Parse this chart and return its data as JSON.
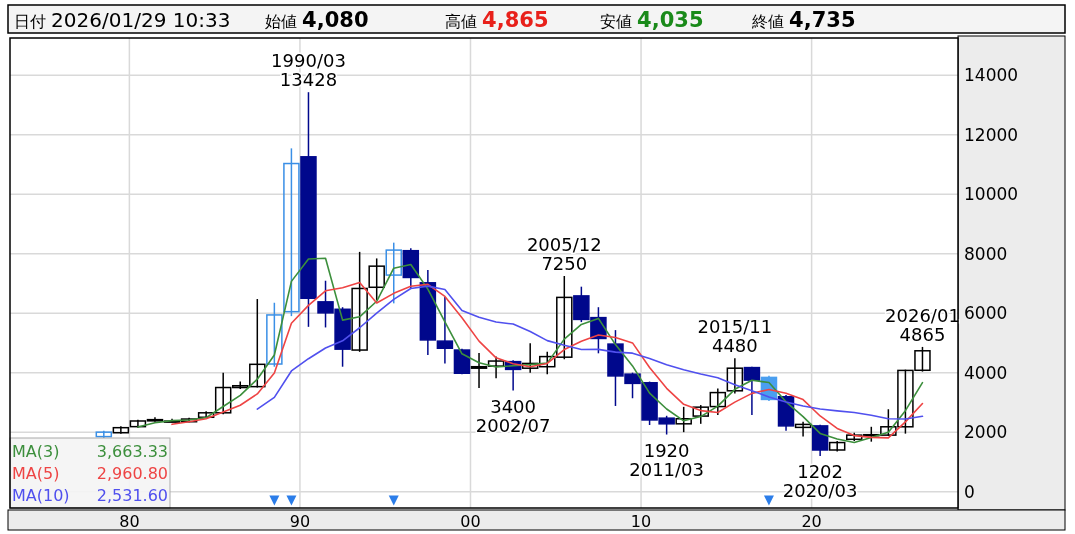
{
  "chart_data": {
    "type": "candlestick",
    "title": "日付 2026/01/29 10:33",
    "annotations": [
      "始値 4,080",
      "高値 4,865",
      "安値 4,035",
      "終値 4,735",
      {
        "text": "1990/03\n13428",
        "x": "1990-07",
        "y": 13428
      },
      {
        "text": "3400\n2002/07",
        "x": "2002-07",
        "y": 3400
      },
      {
        "text": "2005/12\n7250",
        "x": "2005-07",
        "y": 7250
      },
      {
        "text": "1920\n2011/03",
        "x": "2011-07",
        "y": 1920
      },
      {
        "text": "2015/11\n4480",
        "x": "2015-07",
        "y": 4480
      },
      {
        "text": "1202\n2020/03",
        "x": "2020-07",
        "y": 1202
      },
      {
        "text": "2026/01\n4865",
        "x": "2026-07",
        "y": 4865
      }
    ],
    "x": [
      "1978-07",
      "1979-07",
      "1980-07",
      "1981-07",
      "1982-07",
      "1983-07",
      "1984-07",
      "1985-07",
      "1986-07",
      "1987-07",
      "1988-07",
      "1989-07",
      "1990-07",
      "1991-07",
      "1992-07",
      "1993-07",
      "1994-07",
      "1995-07",
      "1996-07",
      "1997-07",
      "1998-07",
      "1999-07",
      "2000-07",
      "2001-07",
      "2002-07",
      "2003-07",
      "2004-07",
      "2005-07",
      "2006-07",
      "2007-07",
      "2008-07",
      "2009-07",
      "2010-07",
      "2011-07",
      "2012-07",
      "2013-07",
      "2014-07",
      "2015-07",
      "2016-07",
      "2017-07",
      "2018-07",
      "2019-07",
      "2020-07",
      "2021-07",
      "2022-07",
      "2023-07",
      "2024-07",
      "2025-07",
      "2026-07"
    ],
    "ohlc": [
      [
        1850,
        2050,
        1800,
        2000
      ],
      [
        1980,
        2200,
        1950,
        2150
      ],
      [
        2185,
        2420,
        2150,
        2375
      ],
      [
        2380,
        2500,
        2350,
        2420
      ],
      [
        2350,
        2450,
        2330,
        2370
      ],
      [
        2350,
        2480,
        2330,
        2440
      ],
      [
        2500,
        2700,
        2480,
        2650
      ],
      [
        2650,
        4000,
        2600,
        3500
      ],
      [
        3500,
        3700,
        3450,
        3560
      ],
      [
        3530,
        6475,
        3500,
        4280
      ],
      [
        4290,
        6350,
        4200,
        5940
      ],
      [
        6050,
        11540,
        5900,
        11030
      ],
      [
        11256,
        13428,
        5540,
        6500
      ],
      [
        6380,
        7090,
        5520,
        6010
      ],
      [
        6130,
        6200,
        4200,
        4790
      ],
      [
        4760,
        8060,
        4700,
        6830
      ],
      [
        6870,
        7840,
        6440,
        7580
      ],
      [
        7280,
        8370,
        6330,
        8120
      ],
      [
        8100,
        8180,
        6830,
        7200
      ],
      [
        7020,
        7450,
        4590,
        5100
      ],
      [
        5060,
        6550,
        4310,
        4820
      ],
      [
        4760,
        4800,
        3950,
        3980
      ],
      [
        4150,
        4660,
        3480,
        4200
      ],
      [
        4220,
        4540,
        3810,
        4390
      ],
      [
        4370,
        4420,
        3400,
        4110
      ],
      [
        4150,
        4990,
        4000,
        4310
      ],
      [
        4200,
        4700,
        3950,
        4540
      ],
      [
        4520,
        7250,
        4450,
        6530
      ],
      [
        6580,
        6890,
        5700,
        5790
      ],
      [
        5850,
        6200,
        4650,
        5150
      ],
      [
        4960,
        5430,
        2880,
        3890
      ],
      [
        3950,
        4000,
        3140,
        3640
      ],
      [
        3660,
        3700,
        2240,
        2410
      ],
      [
        2470,
        2550,
        1920,
        2280
      ],
      [
        2280,
        2850,
        2000,
        2450
      ],
      [
        2540,
        2910,
        2280,
        2840
      ],
      [
        2860,
        3470,
        2580,
        3330
      ],
      [
        3390,
        4480,
        3300,
        4150
      ],
      [
        4170,
        4200,
        2580,
        3750
      ],
      [
        3840,
        3900,
        3050,
        3100
      ],
      [
        3190,
        3250,
        2050,
        2210
      ],
      [
        2160,
        2350,
        1850,
        2260
      ],
      [
        2210,
        2250,
        1202,
        1400
      ],
      [
        1400,
        1700,
        1350,
        1650
      ],
      [
        1760,
        1980,
        1700,
        1900
      ],
      [
        1880,
        2180,
        1680,
        1914
      ],
      [
        1900,
        2770,
        1880,
        2180
      ],
      [
        2180,
        4100,
        1950,
        4075
      ],
      [
        4080,
        4865,
        4035,
        4735
      ]
    ],
    "colors": [
      "#3a8fe6",
      "#000000",
      "#000000",
      "#000000",
      "#000000",
      "#000000",
      "#000000",
      "#000000",
      "#000000",
      "#000000",
      "#3a8fe6",
      "#3a8fe6",
      "#00088c",
      "#00088c",
      "#00088c",
      "#000000",
      "#000000",
      "#3a8fe6",
      "#00088c",
      "#00088c",
      "#00088c",
      "#00088c",
      "#000000",
      "#000000",
      "#00088c",
      "#000000",
      "#000000",
      "#000000",
      "#00088c",
      "#00088c",
      "#00088c",
      "#00088c",
      "#00088c",
      "#00088c",
      "#000000",
      "#000000",
      "#000000",
      "#000000",
      "#00088c",
      "#4a9ff0",
      "#00088c",
      "#000000",
      "#00088c",
      "#000000",
      "#000000",
      "#000000",
      "#000000",
      "#000000",
      "#000000"
    ],
    "series": [
      {
        "type": "line",
        "name": "MA(3) 3,663.33",
        "color": "#3c8f3c",
        "values": [
          null,
          null,
          2175,
          2315,
          2388,
          2410,
          2487,
          2863,
          3237,
          3780,
          4592,
          7069,
          7823,
          7847,
          5767,
          5877,
          6400,
          7510,
          7633,
          6807,
          5707,
          4633,
          4333,
          4190,
          4233,
          4270,
          4320,
          5127,
          5620,
          5823,
          4943,
          4227,
          3313,
          2777,
          2380,
          2523,
          2873,
          3440,
          3743,
          3667,
          3020,
          2523,
          1957,
          1770,
          1650,
          1821,
          1998,
          2723,
          3663.33
        ]
      },
      {
        "type": "line",
        "name": "MA(5) 2,960.80",
        "color": "#ee4444",
        "values": [
          null,
          null,
          null,
          null,
          2263,
          2351,
          2451,
          2676,
          2904,
          3286,
          3986,
          5662,
          6262,
          6752,
          6854,
          7032,
          6342,
          6666,
          6904,
          6966,
          6564,
          5844,
          5060,
          4498,
          4300,
          4198,
          4310,
          4776,
          5056,
          5264,
          5180,
          5000,
          4176,
          3474,
          2934,
          2724,
          2662,
          3010,
          3304,
          3434,
          3308,
          3094,
          2544,
          2124,
          1884,
          1825,
          1809,
          2344,
          2960.8
        ]
      },
      {
        "type": "line",
        "name": "MA(10) 2,531.60",
        "color": "#5050ee",
        "values": [
          null,
          null,
          null,
          null,
          null,
          null,
          null,
          null,
          null,
          2775,
          3169,
          4057,
          4469,
          4828,
          5070,
          5509,
          6002,
          6464,
          6828,
          6910,
          6798,
          6093,
          5863,
          5701,
          5633,
          5381,
          5077,
          4918,
          4777,
          4782,
          4689,
          4655,
          4476,
          4265,
          4099,
          3952,
          3831,
          3593,
          3389,
          3184,
          3016,
          2878,
          2777,
          2714,
          2659,
          2566,
          2451,
          2444,
          2531.6
        ]
      },
      {
        "type": "scatter",
        "marker": "triangle",
        "color": "#2b7de9",
        "x": [
          "1988-07",
          "1989-07",
          "1995-07",
          "2017-07"
        ],
        "values": [
          -300,
          -300,
          -300,
          -300
        ]
      }
    ],
    "xlim": [
      "1973-01",
      "2028-08"
    ],
    "xticks": [
      {
        "value": "1980-01",
        "label": "80"
      },
      {
        "value": "1990-01",
        "label": "90"
      },
      {
        "value": "2000-01",
        "label": "00"
      },
      {
        "value": "2010-01",
        "label": "10"
      },
      {
        "value": "2020-01",
        "label": "20"
      }
    ],
    "ylim": [
      -550,
      15250
    ],
    "yticks": [
      0,
      2000,
      4000,
      6000,
      8000,
      10000,
      12000,
      14000
    ],
    "grid": true
  }
}
